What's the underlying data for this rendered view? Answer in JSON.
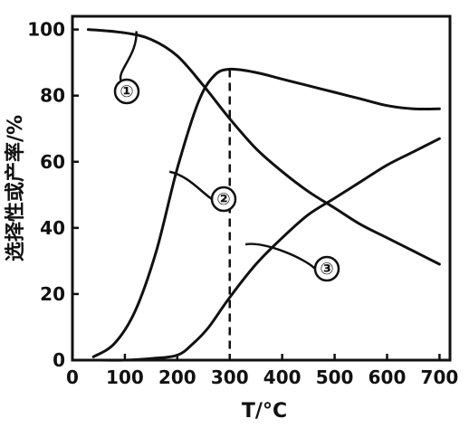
{
  "chart_data": {
    "type": "line",
    "xlabel": "T/°C",
    "ylabel": "选择性或产率/%",
    "xlim": [
      0,
      720
    ],
    "ylim": [
      0,
      104
    ],
    "x_ticks": [
      "0",
      "100",
      "200",
      "300",
      "400",
      "500",
      "600",
      "700"
    ],
    "y_ticks": [
      "0",
      "20",
      "40",
      "60",
      "80",
      "100"
    ],
    "grid": false,
    "legend": "none",
    "reference_line": {
      "x": 300,
      "y_top": 88,
      "style": "dashed"
    },
    "series": [
      {
        "name": "①",
        "x": [
          30,
          100,
          150,
          200,
          250,
          300,
          350,
          400,
          450,
          500,
          550,
          600,
          650,
          700
        ],
        "y": [
          100,
          99,
          97,
          92,
          83,
          73,
          64,
          57,
          51,
          46,
          41,
          37,
          33,
          29
        ]
      },
      {
        "name": "②",
        "x": [
          40,
          80,
          120,
          160,
          200,
          240,
          270,
          300,
          350,
          400,
          450,
          500,
          550,
          600,
          650,
          700
        ],
        "y": [
          1,
          5,
          15,
          33,
          58,
          78,
          86,
          88,
          87,
          85,
          83,
          81,
          79,
          77,
          76,
          76
        ]
      },
      {
        "name": "③",
        "x": [
          40,
          100,
          150,
          200,
          230,
          260,
          300,
          350,
          400,
          450,
          500,
          550,
          600,
          650,
          700
        ],
        "y": [
          0,
          0,
          0.5,
          1.5,
          5,
          10,
          19,
          29,
          37,
          44,
          49,
          54,
          59,
          63,
          67
        ]
      }
    ]
  }
}
